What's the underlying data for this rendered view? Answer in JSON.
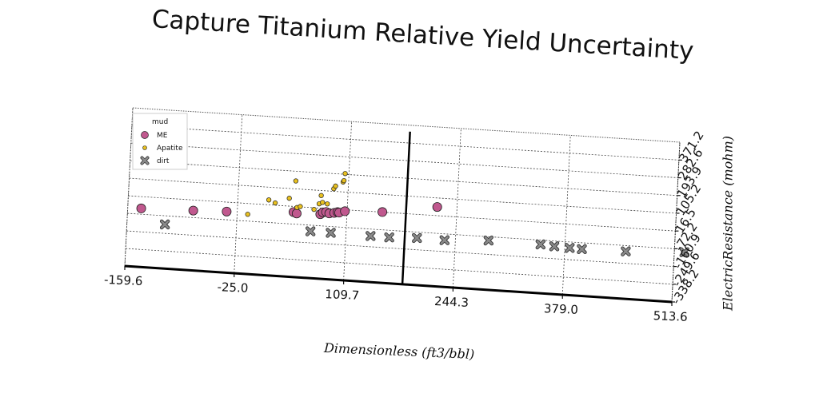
{
  "chart_data": {
    "type": "scatter",
    "title": "Capture Titanium Relative Yield Uncertainty",
    "xlabel": "Dimensionless (ft3/bbl)",
    "ylabel": "ElectricResistance (mohm)",
    "xlim": [
      -159.6,
      513.6
    ],
    "ylim": [
      -338.2,
      460.5
    ],
    "x_ticks": [
      "-159.6",
      "-25.0",
      "109.7",
      "244.3",
      "379.0",
      "513.6"
    ],
    "y_ticks": [
      "-338.2",
      "-249.6",
      "-160.9",
      "-72.2",
      "16.5",
      "105.2",
      "193.9",
      "282.6",
      "371.2"
    ],
    "grid": true,
    "legend": {
      "title": "mud",
      "position": "top-left"
    },
    "vline_x": 182,
    "series": [
      {
        "name": "ME",
        "color": "#c0588e",
        "marker": "circle",
        "points": [
          [
            -143,
            -43
          ],
          [
            -79,
            -37
          ],
          [
            -38,
            -31
          ],
          [
            44,
            -12
          ],
          [
            48,
            -18
          ],
          [
            77,
            -14
          ],
          [
            80,
            -4
          ],
          [
            84,
            -1
          ],
          [
            88,
            -7
          ],
          [
            94,
            -3
          ],
          [
            98,
            2
          ],
          [
            100,
            0
          ],
          [
            107,
            9
          ],
          [
            153,
            17
          ],
          [
            220,
            60
          ]
        ]
      },
      {
        "name": "Apatite",
        "color": "#e8c020",
        "marker": "small-circle",
        "points": [
          [
            -12,
            -38
          ],
          [
            13,
            41
          ],
          [
            21,
            28
          ],
          [
            38,
            56
          ],
          [
            45,
            145
          ],
          [
            48,
            12
          ],
          [
            52,
            18
          ],
          [
            69,
            8
          ],
          [
            75,
            38
          ],
          [
            77,
            80
          ],
          [
            79,
            46
          ],
          [
            85,
            40
          ],
          [
            92,
            118
          ],
          [
            94,
            132
          ],
          [
            103,
            155
          ],
          [
            104,
            162
          ],
          [
            105,
            198
          ]
        ]
      },
      {
        "name": "dirt",
        "color": "#8a8a8a",
        "marker": "x",
        "points": [
          [
            -113,
            -116
          ],
          [
            66,
            -103
          ],
          [
            91,
            -104
          ],
          [
            140,
            -107
          ],
          [
            163,
            -108
          ],
          [
            197,
            -102
          ],
          [
            231,
            -104
          ],
          [
            285,
            -91
          ],
          [
            349,
            -94
          ],
          [
            366,
            -99
          ],
          [
            385,
            -102
          ],
          [
            400,
            -104
          ],
          [
            454,
            -101
          ],
          [
            526,
            -86
          ]
        ]
      }
    ]
  }
}
